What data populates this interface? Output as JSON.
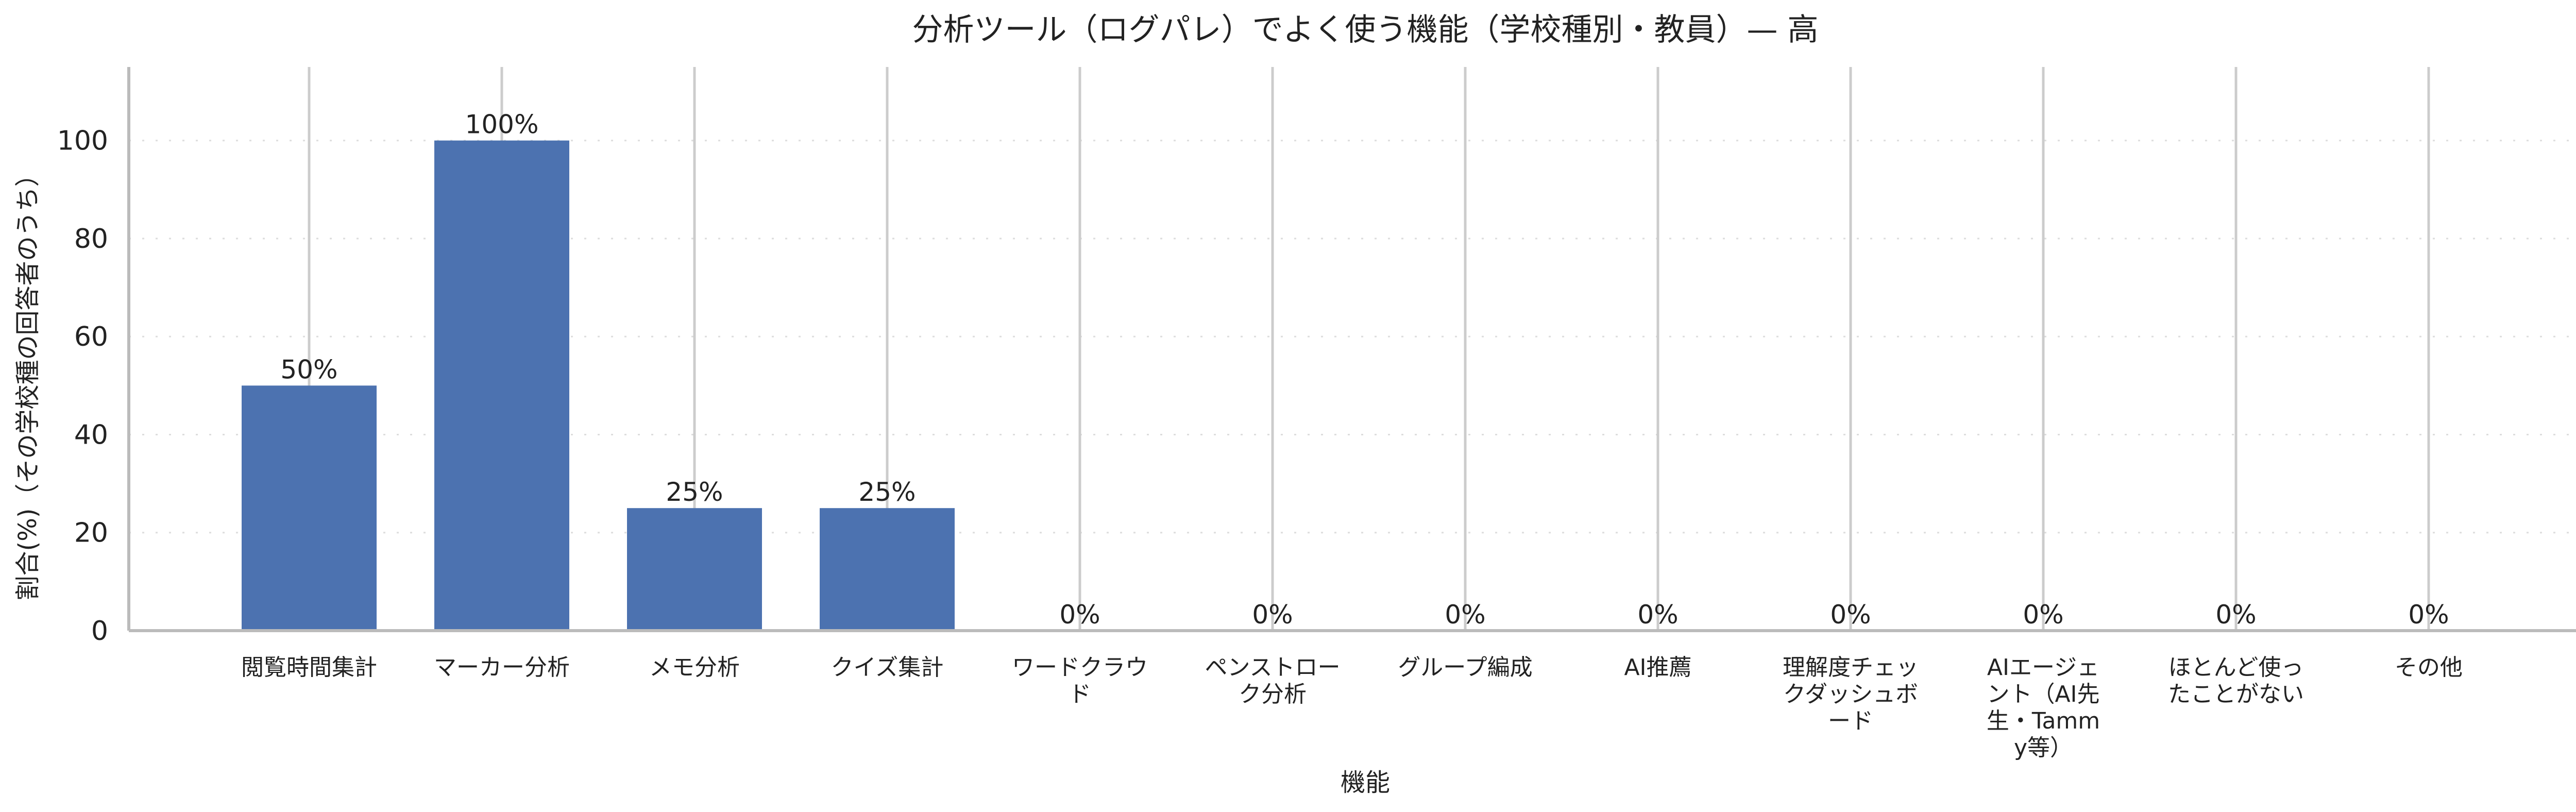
{
  "chart_data": {
    "type": "bar",
    "title": "分析ツール（ログパレ）でよく使う機能（学校種別・教員）— 高",
    "xlabel": "機能",
    "ylabel": "割合(%)（その学校種の回答者のうち）",
    "ylim": [
      0,
      115
    ],
    "yticks": [
      0,
      20,
      40,
      60,
      80,
      100
    ],
    "grid": true,
    "legend": "none",
    "bar_color": "#4c72b0",
    "categories": [
      "閲覧時間集計",
      "マーカー分析",
      "メモ分析",
      "クイズ集計",
      "ワードクラウド",
      "ペンストローク分析",
      "グループ編成",
      "AI推薦",
      "理解度チェックダッシュボード",
      "AIエージェント（AI先生・Tammy等）",
      "ほとんど使ったことがない",
      "その他"
    ],
    "category_lines": [
      [
        "閲覧時間集計"
      ],
      [
        "マーカー分析"
      ],
      [
        "メモ分析"
      ],
      [
        "クイズ集計"
      ],
      [
        "ワードクラウ",
        "ド"
      ],
      [
        "ペンストロー",
        "ク分析"
      ],
      [
        "グループ編成"
      ],
      [
        "AI推薦"
      ],
      [
        "理解度チェッ",
        "クダッシュボ",
        "ード"
      ],
      [
        "AIエージェ",
        "ント（AI先",
        "生・Tamm",
        "y等）"
      ],
      [
        "ほとんど使っ",
        "たことがない"
      ],
      [
        "その他"
      ]
    ],
    "values": [
      50,
      100,
      25,
      25,
      0,
      0,
      0,
      0,
      0,
      0,
      0,
      0
    ],
    "data_labels": [
      "50%",
      "100%",
      "25%",
      "25%",
      "0%",
      "0%",
      "0%",
      "0%",
      "0%",
      "0%",
      "0%",
      "0%"
    ]
  }
}
